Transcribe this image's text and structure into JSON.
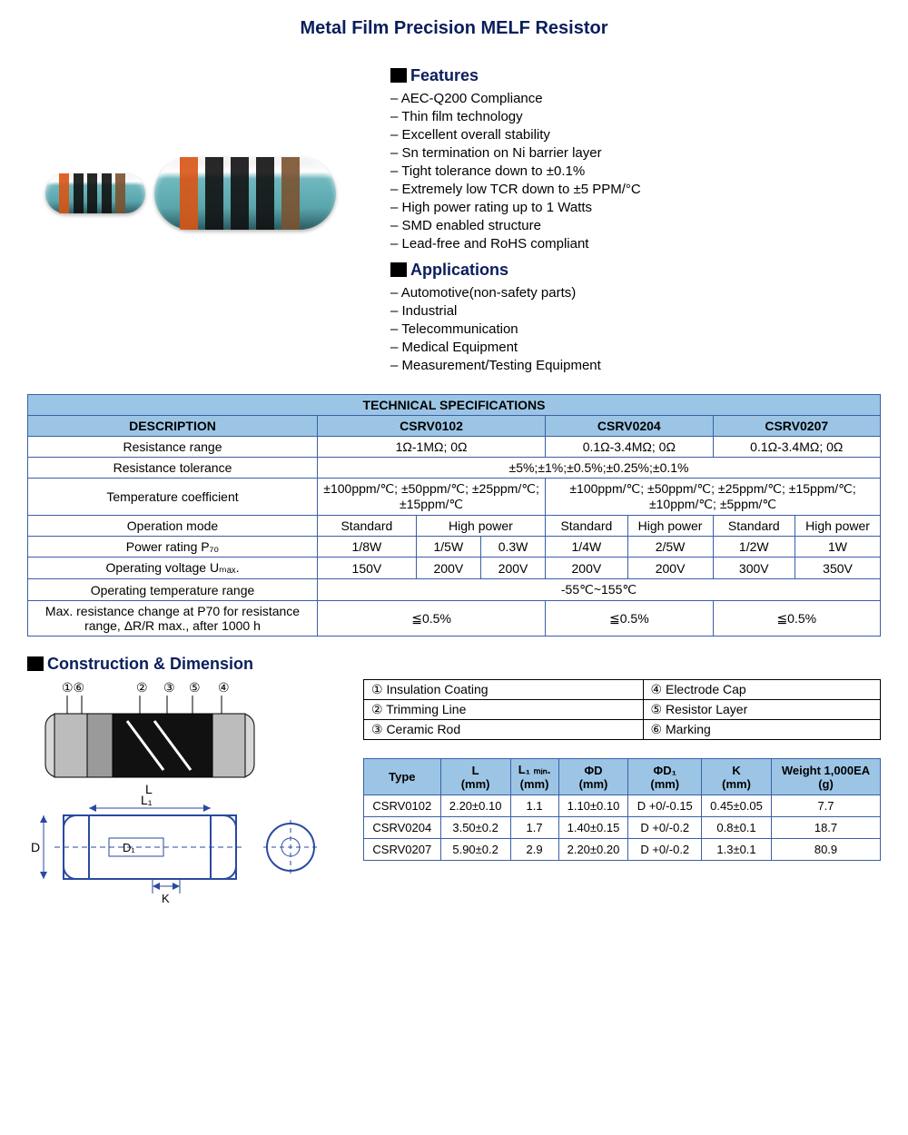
{
  "title": "Metal Film Precision MELF Resistor",
  "features_heading": "Features",
  "features": [
    "AEC-Q200 Compliance",
    "Thin film technology",
    "Excellent overall stability",
    "Sn termination on Ni barrier layer",
    "Tight tolerance down to ±0.1%",
    "Extremely low TCR down to ±5 PPM/°C",
    "High power rating up to 1 Watts",
    "SMD enabled structure",
    "Lead-free and RoHS compliant"
  ],
  "applications_heading": "Applications",
  "applications": [
    "Automotive(non-safety parts)",
    "Industrial",
    "Telecommunication",
    "Medical Equipment",
    "Measurement/Testing Equipment"
  ],
  "tech_spec": {
    "title": "TECHNICAL SPECIFICATIONS",
    "desc_header": "DESCRIPTION",
    "models": [
      "CSRV0102",
      "CSRV0204",
      "CSRV0207"
    ],
    "rows": {
      "res_range": {
        "label": "Resistance range",
        "v1": "1Ω-1MΩ; 0Ω",
        "v2": "0.1Ω-3.4MΩ; 0Ω",
        "v3": "0.1Ω-3.4MΩ; 0Ω"
      },
      "tol": {
        "label": "Resistance tolerance",
        "merged": "±5%;±1%;±0.5%;±0.25%;±0.1%"
      },
      "tcr": {
        "label": "Temperature coefficient",
        "v1": "±100ppm/℃; ±50ppm/℃; ±25ppm/℃; ±15ppm/℃",
        "v23": "±100ppm/℃; ±50ppm/℃; ±25ppm/℃; ±15ppm/℃; ±10ppm/℃; ±5ppm/℃"
      },
      "op_mode": {
        "label": "Operation mode",
        "std": "Standard",
        "hp": "High power"
      },
      "power": {
        "label": "Power rating P₇₀",
        "c": [
          "1/8W",
          "1/5W",
          "0.3W",
          "1/4W",
          "2/5W",
          "1/2W",
          "1W"
        ]
      },
      "volt": {
        "label": "Operating voltage Uₘₐₓ.",
        "c": [
          "150V",
          "200V",
          "200V",
          "200V",
          "200V",
          "300V",
          "350V"
        ]
      },
      "temp": {
        "label": "Operating temperature range",
        "merged": "-55℃~155℃"
      },
      "drift": {
        "label": "Max. resistance change at P70 for resistance range, ΔR/R max., after 1000 h",
        "v1": "≦0.5%",
        "v2": "≦0.5%",
        "v3": "≦0.5%"
      }
    }
  },
  "construction_heading": "Construction & Dimension",
  "legend": [
    {
      "n": "①",
      "t": "Insulation Coating"
    },
    {
      "n": "②",
      "t": "Trimming Line"
    },
    {
      "n": "③",
      "t": "Ceramic Rod"
    },
    {
      "n": "④",
      "t": "Electrode Cap"
    },
    {
      "n": "⑤",
      "t": "Resistor Layer"
    },
    {
      "n": "⑥",
      "t": "Marking"
    }
  ],
  "dim_headers": [
    "Type",
    "L (mm)",
    "L₁ ₘᵢₙ. (mm)",
    "ΦD (mm)",
    "ΦD₁ (mm)",
    "K (mm)",
    "Weight 1,000EA (g)"
  ],
  "dim_rows": [
    [
      "CSRV0102",
      "2.20±0.10",
      "1.1",
      "1.10±0.10",
      "D +0/-0.15",
      "0.45±0.05",
      "7.7"
    ],
    [
      "CSRV0204",
      "3.50±0.2",
      "1.7",
      "1.40±0.15",
      "D +0/-0.2",
      "0.8±0.1",
      "18.7"
    ],
    [
      "CSRV0207",
      "5.90±0.2",
      "2.9",
      "2.20±0.20",
      "D +0/-0.2",
      "1.3±0.1",
      "80.9"
    ]
  ],
  "colors": {
    "header_bg": "#9cc5e5",
    "border": "#3a5fa8",
    "heading_text": "#0a1e5c"
  }
}
